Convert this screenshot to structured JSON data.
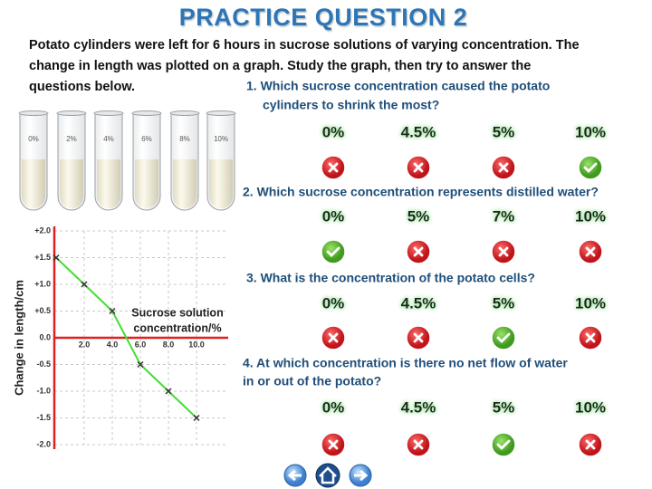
{
  "title": "PRACTICE QUESTION 2",
  "intro": [
    "Potato cylinders were left for 6 hours in sucrose solutions of varying concentration. The",
    "change in length was plotted on a graph. Study the graph, then try to answer the",
    "questions below."
  ],
  "tubes": [
    "0%",
    "2%",
    "4%",
    "6%",
    "8%",
    "10%"
  ],
  "chart_data": {
    "type": "line",
    "y_label": "Change in length/cm",
    "x_label": [
      "Sucrose solution",
      "concentration/%"
    ],
    "x": [
      0,
      2,
      4,
      6,
      8,
      10
    ],
    "series": [
      {
        "color": "#44dd33",
        "values": [
          1.5,
          1.0,
          0.5,
          -0.5,
          -1.0,
          -1.5
        ]
      }
    ],
    "xlim": [
      0,
      12
    ],
    "ylim": [
      -2,
      2
    ],
    "xticks": [
      {
        "value": 2,
        "label": "2.0"
      },
      {
        "value": 4,
        "label": "4.0"
      },
      {
        "value": 6,
        "label": "6.0"
      },
      {
        "value": 8,
        "label": "8.0"
      },
      {
        "value": 10,
        "label": "10.0"
      }
    ],
    "yticks": [
      {
        "value": 2,
        "label": "+2.0"
      },
      {
        "value": 1.5,
        "label": "+1.5"
      },
      {
        "value": 1,
        "label": "+1.0"
      },
      {
        "value": 0.5,
        "label": "+0.5"
      },
      {
        "value": 0,
        "label": "0.0"
      },
      {
        "value": -0.5,
        "label": "-0.5"
      },
      {
        "value": -1,
        "label": "-1.0"
      },
      {
        "value": -1.5,
        "label": "-1.5"
      },
      {
        "value": -2,
        "label": "-2.0"
      }
    ],
    "grid": true,
    "axis_color": "#e02020"
  },
  "questions": [
    {
      "text": [
        "1. Which sucrose concentration caused the potato",
        "cylinders to shrink the most?"
      ],
      "options": [
        {
          "label": "0%",
          "correct": false
        },
        {
          "label": "4.5%",
          "correct": false
        },
        {
          "label": "5%",
          "correct": false
        },
        {
          "label": "10%",
          "correct": true
        }
      ]
    },
    {
      "text": [
        "2. Which sucrose concentration represents distilled water?"
      ],
      "options": [
        {
          "label": "0%",
          "correct": true
        },
        {
          "label": "5%",
          "correct": false
        },
        {
          "label": "7%",
          "correct": false
        },
        {
          "label": "10%",
          "correct": false
        }
      ]
    },
    {
      "text": [
        "3. What is the concentration of the potato cells?"
      ],
      "options": [
        {
          "label": "0%",
          "correct": false
        },
        {
          "label": "4.5%",
          "correct": false
        },
        {
          "label": "5%",
          "correct": true
        },
        {
          "label": "10%",
          "correct": false
        }
      ]
    },
    {
      "text": [
        "4. At which concentration is there no net flow of water",
        "in or out of the potato?"
      ],
      "options": [
        {
          "label": "0%",
          "correct": false
        },
        {
          "label": "4.5%",
          "correct": false
        },
        {
          "label": "5%",
          "correct": true
        },
        {
          "label": "10%",
          "correct": false
        }
      ]
    }
  ]
}
